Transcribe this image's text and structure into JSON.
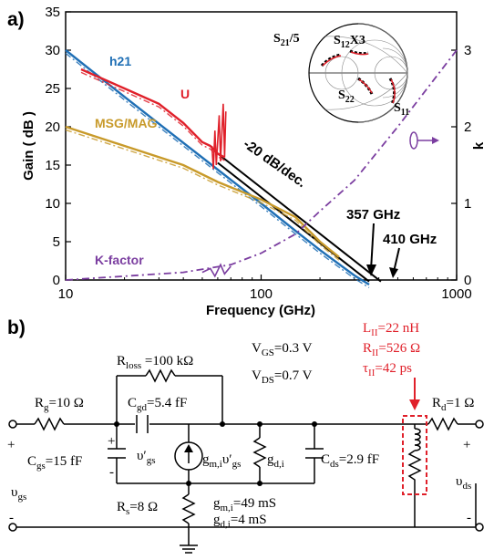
{
  "panel_a": {
    "label": "a)",
    "chart_data": {
      "type": "line",
      "xscale": "log",
      "xlim": [
        10,
        1000
      ],
      "ylim": [
        0,
        35
      ],
      "y2lim": [
        0,
        3.5
      ],
      "xlabel": "Frequency (GHz)",
      "ylabel": "Gain ( dB )",
      "y2label": "k",
      "xticks": [
        "10",
        "100",
        "1000"
      ],
      "yticks": [
        "0",
        "5",
        "10",
        "15",
        "20",
        "25",
        "30",
        "35"
      ],
      "y2ticks": [
        "0",
        "1",
        "2",
        "3"
      ],
      "series": [
        {
          "name": "h21",
          "color": "#1f6fb5",
          "axis": "left",
          "x": [
            10,
            20,
            40,
            60,
            100,
            150,
            200,
            300,
            357
          ],
          "y": [
            30.0,
            23.9,
            17.9,
            14.4,
            10.0,
            6.4,
            3.9,
            0.6,
            -0.6
          ]
        },
        {
          "name": "U",
          "color": "#e0202a",
          "axis": "left",
          "x": [
            12,
            20,
            30,
            40,
            50,
            55,
            60,
            65
          ],
          "y": [
            27.5,
            25.0,
            23.0,
            20.5,
            18.0,
            17.5,
            16.5,
            16.0
          ]
        },
        {
          "name": "MSG/MAG",
          "color": "#c89a2a",
          "axis": "left",
          "x": [
            10,
            20,
            40,
            60,
            100,
            150,
            200,
            250
          ],
          "y": [
            20.0,
            17.5,
            15.0,
            12.8,
            10.5,
            8.2,
            5.0,
            3.0
          ]
        },
        {
          "name": "K-factor",
          "color": "#7b3ea0",
          "axis": "right",
          "x": [
            10,
            20,
            40,
            70,
            100,
            150,
            200,
            300,
            500,
            1000
          ],
          "y": [
            0.0,
            0.05,
            0.1,
            0.2,
            0.35,
            0.6,
            0.9,
            1.3,
            2.0,
            3.0
          ]
        }
      ],
      "extrapolation": [
        {
          "f_end": 357,
          "x": [
            60,
            357
          ],
          "y": [
            15.3,
            -0.2
          ]
        },
        {
          "f_end": 410,
          "x": [
            60,
            410
          ],
          "y": [
            16.5,
            -0.2
          ]
        }
      ],
      "annotations": [
        "-20 dB/dec.",
        "357 GHz",
        "410 GHz"
      ]
    },
    "smith": {
      "labels": [
        "S21/5",
        "S12X3",
        "S22",
        "S11"
      ]
    }
  },
  "panel_b": {
    "label": "b)",
    "texts": {
      "rloss": "R",
      "rloss_sub": "loss",
      "rloss_val": " =100 kΩ",
      "vgs": "V",
      "vgs_sub": "GS",
      "vgs_val": "=0.3 V",
      "vds": "V",
      "vds_sub": "DS",
      "vds_val": "=0.7 V",
      "rg": "R",
      "rg_sub": "g",
      "rg_val": "=10 Ω",
      "cgd": "C",
      "cgd_sub": "gd",
      "cgd_val": "=5.4 fF",
      "cgs": "C",
      "cgs_sub": "gs",
      "cgs_val": "=15 fF",
      "vgsp": "υ′",
      "vgsp_sub": "gs",
      "gm": "g",
      "gm_sub": "m,i",
      "gm_mid": "υ′",
      "gm_sub2": "gs",
      "gd": "g",
      "gd_sub": "d,i",
      "cds": "C",
      "cds_sub": "ds",
      "cds_val": "=2.9 fF",
      "rs": "R",
      "rs_sub": "s",
      "rs_val": "=8 Ω",
      "gmv": "g",
      "gmv_sub": "m,i",
      "gmv_val": "=49 mS",
      "gdv": "g",
      "gdv_sub": "d,i",
      "gdv_val": "=4 mS",
      "lii": "L",
      "lii_sub": "II",
      "lii_val": "=22 nH",
      "rii": "R",
      "rii_sub": "II",
      "rii_val": "=526 Ω",
      "tii": "τ",
      "tii_sub": "II",
      "tii_val": "=42 ps",
      "rd": "R",
      "rd_sub": "d",
      "rd_val": "=1 Ω",
      "v_in": "υ",
      "v_in_sub": "gs",
      "v_out": "υ",
      "v_out_sub": "ds",
      "plus": "+",
      "minus": "-"
    }
  }
}
